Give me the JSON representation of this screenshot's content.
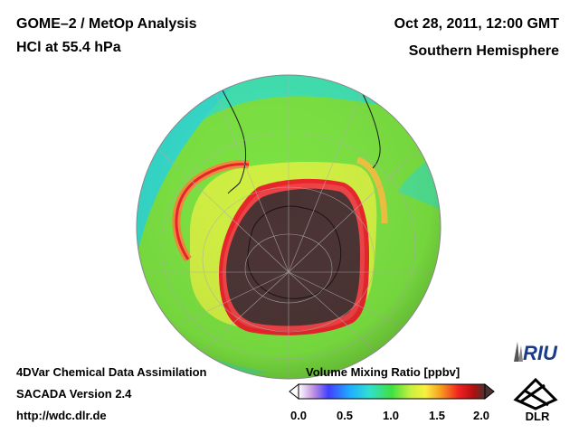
{
  "header": {
    "title_line1": "GOME–2 / MetOp Analysis",
    "title_line2": "HCl at 55.4 hPa",
    "datetime": "Oct 28, 2011, 12:00 GMT",
    "hemisphere": "Southern Hemisphere"
  },
  "footer": {
    "line1": "4DVar Chemical Data Assimilation",
    "line2": "SACADA Version 2.4",
    "line3": "http://wdc.dlr.de"
  },
  "colorbar": {
    "title": "Volume Mixing Ratio [ppbv]",
    "ticks": [
      "0.0",
      "0.5",
      "1.0",
      "1.5",
      "2.0"
    ],
    "min": 0.0,
    "max": 2.0
  },
  "logos": {
    "riu": "RIU",
    "dlr": "DLR"
  },
  "colors": {
    "depleted_core": "#4a3232",
    "ring_high": "#e8242a",
    "ring_orange": "#f5a020",
    "band_yellow": "#e8f040",
    "field_green": "#7ae040",
    "background_teal": "#40e0b0"
  }
}
